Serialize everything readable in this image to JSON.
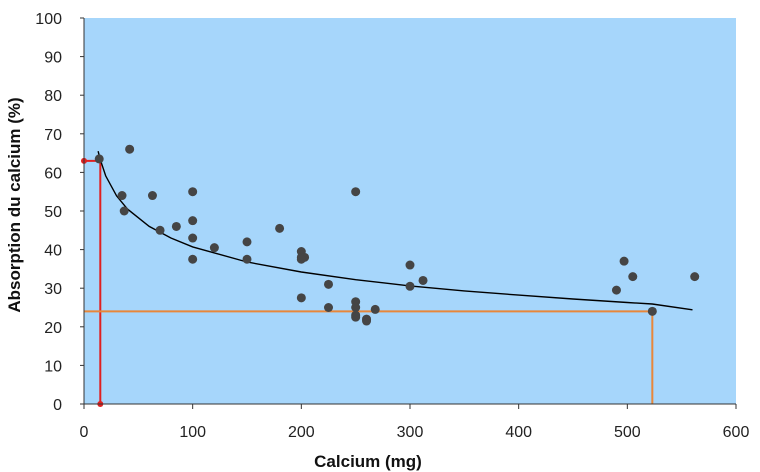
{
  "chart_data": {
    "type": "scatter",
    "title": "",
    "xlabel": "Calcium (mg)",
    "ylabel": "Absorption du calcium (%)",
    "xlim": [
      0,
      600
    ],
    "ylim": [
      0,
      100
    ],
    "x_ticks": [
      0,
      100,
      200,
      300,
      400,
      500,
      600
    ],
    "y_ticks": [
      0,
      10,
      20,
      30,
      40,
      50,
      60,
      70,
      80,
      90,
      100
    ],
    "grid": false,
    "legend": "none",
    "plot_background": "#a6d6fb",
    "point_color": "#454545",
    "trend_color": "#000000",
    "red_guide_color": "#e02020",
    "orange_guide_color": "#e8873a",
    "points": [
      {
        "x": 14,
        "y": 63.5
      },
      {
        "x": 42,
        "y": 66
      },
      {
        "x": 35,
        "y": 54
      },
      {
        "x": 63,
        "y": 54
      },
      {
        "x": 37,
        "y": 50
      },
      {
        "x": 100,
        "y": 55
      },
      {
        "x": 70,
        "y": 45
      },
      {
        "x": 85,
        "y": 46
      },
      {
        "x": 100,
        "y": 47.5
      },
      {
        "x": 100,
        "y": 43
      },
      {
        "x": 100,
        "y": 37.5
      },
      {
        "x": 120,
        "y": 40.5
      },
      {
        "x": 150,
        "y": 42
      },
      {
        "x": 150,
        "y": 37.5
      },
      {
        "x": 180,
        "y": 45.5
      },
      {
        "x": 200,
        "y": 39.5
      },
      {
        "x": 200,
        "y": 38
      },
      {
        "x": 203,
        "y": 38
      },
      {
        "x": 200,
        "y": 37.5
      },
      {
        "x": 200,
        "y": 27.5
      },
      {
        "x": 225,
        "y": 31
      },
      {
        "x": 225,
        "y": 25
      },
      {
        "x": 250,
        "y": 55
      },
      {
        "x": 250,
        "y": 26.5
      },
      {
        "x": 250,
        "y": 25
      },
      {
        "x": 250,
        "y": 23
      },
      {
        "x": 250,
        "y": 22.5
      },
      {
        "x": 260,
        "y": 22
      },
      {
        "x": 260,
        "y": 21.5
      },
      {
        "x": 268,
        "y": 24.5
      },
      {
        "x": 300,
        "y": 36
      },
      {
        "x": 300,
        "y": 30.5
      },
      {
        "x": 312,
        "y": 32
      },
      {
        "x": 490,
        "y": 29.5
      },
      {
        "x": 497,
        "y": 37
      },
      {
        "x": 505,
        "y": 33
      },
      {
        "x": 523,
        "y": 24
      },
      {
        "x": 562,
        "y": 33
      }
    ],
    "trendline": {
      "type": "logarithmic",
      "x": [
        13,
        15,
        20,
        30,
        40,
        60,
        80,
        100,
        150,
        200,
        250,
        300,
        350,
        400,
        450,
        500,
        523,
        560
      ],
      "y": [
        65.5,
        63.3,
        59.1,
        53.9,
        50.5,
        46.0,
        43.0,
        40.7,
        36.8,
        34.2,
        32.2,
        30.6,
        29.3,
        28.2,
        27.2,
        26.3,
        25.9,
        24.4
      ]
    },
    "guides": [
      {
        "color": "red",
        "x": 15,
        "y": 63
      },
      {
        "color": "orange",
        "x": 523,
        "y": 24
      }
    ]
  }
}
